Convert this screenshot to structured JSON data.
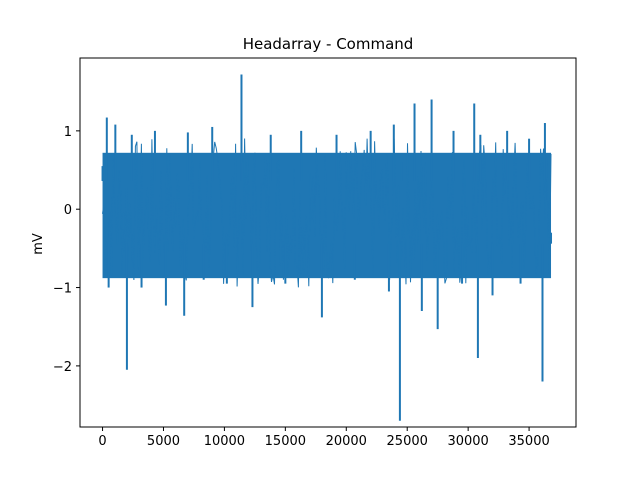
{
  "chart_data": {
    "type": "line",
    "title": "Headarray - Command",
    "xlabel": "",
    "ylabel": "mV",
    "xlim": [
      -1850,
      38850
    ],
    "ylim": [
      -2.78,
      1.93
    ],
    "xticks": [
      0,
      5000,
      10000,
      15000,
      20000,
      25000,
      30000,
      35000
    ],
    "xtick_labels": [
      "0",
      "5000",
      "10000",
      "15000",
      "20000",
      "25000",
      "30000",
      "35000"
    ],
    "yticks": [
      -2,
      -1,
      0,
      1
    ],
    "ytick_labels": [
      "−2",
      "−1",
      "0",
      "1"
    ],
    "grid": false,
    "legend": "none",
    "line_color": "#1f77b4",
    "series": [
      {
        "n_samples": 37000,
        "x": [
          0,
          350,
          500,
          1050,
          2000,
          2400,
          3200,
          4300,
          5200,
          6700,
          7000,
          8300,
          9000,
          10200,
          11400,
          11500,
          12300,
          13800,
          15000,
          16300,
          18000,
          19200,
          20700,
          22000,
          23500,
          23900,
          24400,
          24500,
          25600,
          26200,
          27000,
          27500,
          28800,
          29500,
          30500,
          30800,
          31000,
          32000,
          33200,
          34300,
          35000,
          36100,
          36300,
          36800
        ],
        "y": [
          0.55,
          1.17,
          -1.0,
          1.08,
          -2.05,
          0.95,
          -1.0,
          1.0,
          -1.23,
          -1.36,
          0.98,
          -0.9,
          1.05,
          -0.95,
          1.72,
          0.6,
          -1.25,
          0.95,
          -0.95,
          1.0,
          -1.38,
          0.95,
          -0.9,
          1.0,
          -1.05,
          1.08,
          -2.7,
          0.6,
          1.35,
          -1.3,
          1.4,
          -1.53,
          1.0,
          -0.95,
          1.35,
          -1.9,
          0.95,
          -1.1,
          1.0,
          -0.95,
          0.9,
          -2.2,
          1.1,
          -0.3
        ],
        "band_low": -0.88,
        "band_high": 0.72
      }
    ]
  }
}
